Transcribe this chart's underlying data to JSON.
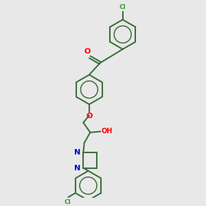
{
  "bg_color": "#e8e8e8",
  "bond_color": "#3a6e3a",
  "bond_width": 1.5,
  "atom_colors": {
    "O": "#ff0000",
    "N": "#0000cc",
    "Cl": "#3a9a3a",
    "H": "#000000"
  },
  "figsize": [
    3.0,
    3.0
  ],
  "dpi": 100,
  "xlim": [
    0,
    10
  ],
  "ylim": [
    0,
    10
  ]
}
